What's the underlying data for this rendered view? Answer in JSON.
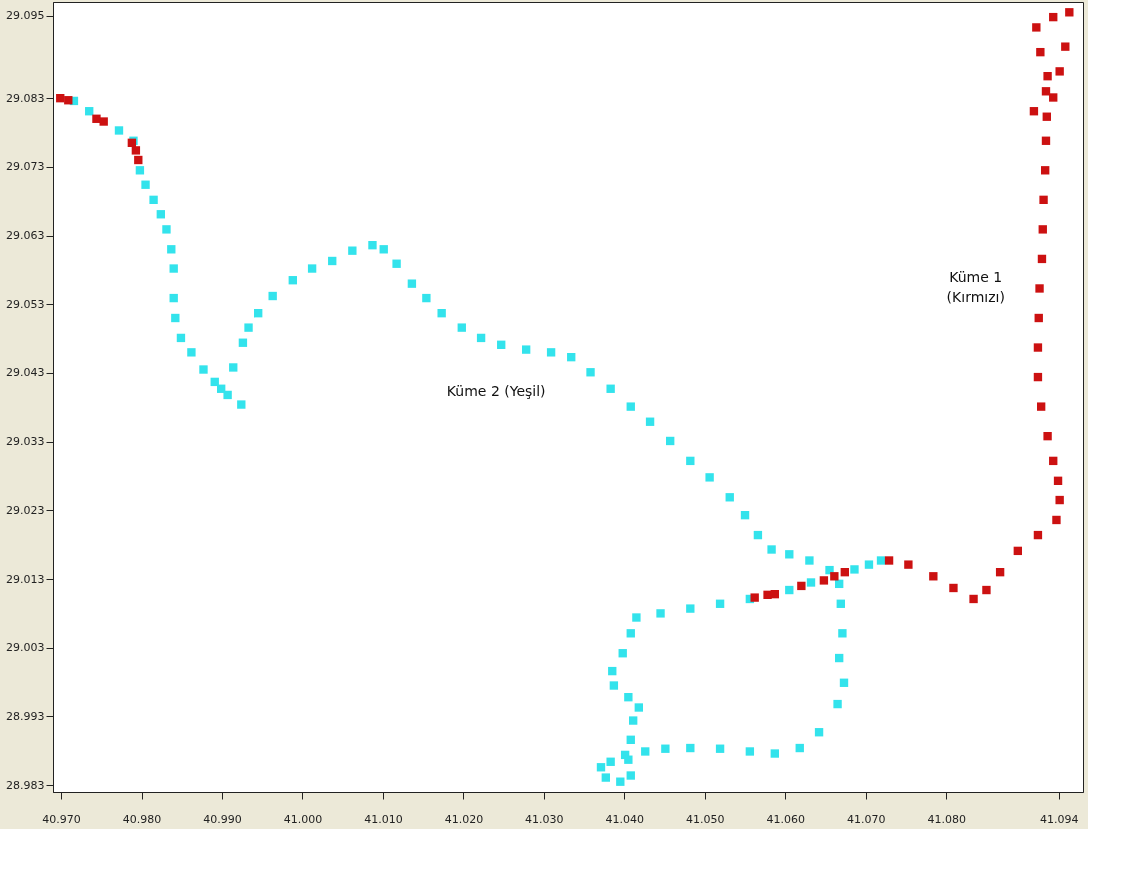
{
  "chart_data": {
    "type": "scatter",
    "marker": "square",
    "grid": false,
    "xlim": [
      40.969,
      41.097
    ],
    "ylim": [
      28.982,
      29.097
    ],
    "xticks": [
      {
        "value": 40.97,
        "label": "40.970"
      },
      {
        "value": 40.98,
        "label": "40.980"
      },
      {
        "value": 40.99,
        "label": "40.990"
      },
      {
        "value": 41.0,
        "label": "41.000"
      },
      {
        "value": 41.01,
        "label": "41.010"
      },
      {
        "value": 41.02,
        "label": "41.020"
      },
      {
        "value": 41.03,
        "label": "41.030"
      },
      {
        "value": 41.04,
        "label": "41.040"
      },
      {
        "value": 41.05,
        "label": "41.050"
      },
      {
        "value": 41.06,
        "label": "41.060"
      },
      {
        "value": 41.07,
        "label": "41.070"
      },
      {
        "value": 41.08,
        "label": "41.080"
      },
      41.094
    ],
    "yticks": [
      28.983,
      28.993,
      29.003,
      29.013,
      29.023,
      29.033,
      29.043,
      29.053,
      29.063,
      29.073,
      29.083,
      29.095
    ],
    "series": [
      {
        "name": "Küme 2 (Yeşil)",
        "color": "#33e3ec",
        "x": [
          40.9716,
          40.9735,
          40.9772,
          40.979,
          40.9798,
          40.9805,
          40.9815,
          40.9824,
          40.9831,
          40.9837,
          40.984,
          40.984,
          40.9842,
          40.9849,
          40.9862,
          40.9877,
          40.9891,
          40.9907,
          40.9924,
          40.9899,
          40.9914,
          40.9926,
          40.9933,
          40.9945,
          40.9963,
          40.9988,
          41.0012,
          41.0037,
          41.0062,
          41.0087,
          41.0101,
          41.0117,
          41.0136,
          41.0154,
          41.0173,
          41.0198,
          41.0222,
          41.0247,
          41.0278,
          41.0309,
          41.0334,
          41.0358,
          41.0383,
          41.0408,
          41.0432,
          41.0457,
          41.0482,
          41.0506,
          41.0531,
          41.055,
          41.0566,
          41.0583,
          41.0605,
          41.063,
          41.0655,
          41.0667,
          41.0669,
          41.0671,
          41.0667,
          41.0673,
          41.0665,
          41.0642,
          41.0618,
          41.0587,
          41.0556,
          41.0519,
          41.0482,
          41.0451,
          41.0426,
          41.0401,
          41.0383,
          41.0371,
          41.0377,
          41.0395,
          41.0408,
          41.0405,
          41.0408,
          41.0411,
          41.0418,
          41.0405,
          41.0387,
          41.0385,
          41.0398,
          41.0408,
          41.0415,
          41.0445,
          41.0482,
          41.0519,
          41.0556,
          41.0605,
          41.0632,
          41.0686,
          41.0704,
          41.0719
        ],
        "values": [
          29.0826,
          29.0811,
          29.0783,
          29.0768,
          29.0725,
          29.0704,
          29.0682,
          29.0661,
          29.0639,
          29.061,
          29.0582,
          29.0539,
          29.051,
          29.0481,
          29.046,
          29.0435,
          29.0417,
          29.0398,
          29.0384,
          29.0407,
          29.0438,
          29.0474,
          29.0496,
          29.0517,
          29.0542,
          29.0565,
          29.0582,
          29.0593,
          29.0608,
          29.0616,
          29.061,
          29.0589,
          29.056,
          29.0539,
          29.0517,
          29.0496,
          29.0481,
          29.0471,
          29.0464,
          29.046,
          29.0453,
          29.0431,
          29.0407,
          29.0381,
          29.0359,
          29.0331,
          29.0302,
          29.0278,
          29.0249,
          29.0223,
          29.0194,
          29.0173,
          29.0166,
          29.0157,
          29.0143,
          29.0123,
          29.0094,
          29.0051,
          29.0015,
          28.9979,
          28.9948,
          28.9907,
          28.9884,
          28.9876,
          28.9879,
          28.9883,
          28.9884,
          28.9883,
          28.9879,
          28.9874,
          28.9864,
          28.9856,
          28.9841,
          28.9835,
          28.9844,
          28.9867,
          28.9896,
          28.9924,
          28.9943,
          28.9958,
          28.9975,
          28.9996,
          29.0022,
          29.0051,
          29.0074,
          29.008,
          29.0087,
          29.0094,
          29.0101,
          29.0114,
          29.0125,
          29.0144,
          29.0151,
          29.0157
        ]
      },
      {
        "name": "Küme 1\n(Kırmızı)",
        "color": "#cc1111",
        "x": [
          40.9699,
          40.9709,
          40.9744,
          40.9753,
          40.9788,
          40.9793,
          40.9796,
          41.0562,
          41.0578,
          41.0587,
          41.062,
          41.0648,
          41.0661,
          41.0674,
          41.0729,
          41.0753,
          41.0784,
          41.0809,
          41.0834,
          41.085,
          41.0867,
          41.0889,
          41.0914,
          41.0937,
          41.0941,
          41.0939,
          41.0933,
          41.0926,
          41.0918,
          41.0914,
          41.0914,
          41.0915,
          41.0916,
          41.0919,
          41.092,
          41.0921,
          41.0923,
          41.0924,
          41.0925,
          41.0933,
          41.0941,
          41.0948,
          41.0953,
          41.0933,
          41.0912,
          41.0917,
          41.0926,
          41.0924,
          41.0909
        ],
        "values": [
          29.083,
          29.0827,
          29.08,
          29.0796,
          29.0765,
          29.0754,
          29.074,
          29.0103,
          29.0107,
          29.0108,
          29.012,
          29.0128,
          29.0134,
          29.014,
          29.0157,
          29.0151,
          29.0134,
          29.0117,
          29.0101,
          29.0114,
          29.014,
          29.0171,
          29.0194,
          29.0216,
          29.0245,
          29.0273,
          29.0302,
          29.0338,
          29.0381,
          29.0424,
          29.0467,
          29.051,
          29.0553,
          29.0596,
          29.0639,
          29.0682,
          29.0725,
          29.0768,
          29.0803,
          29.0831,
          29.0869,
          29.0905,
          29.0955,
          29.0948,
          29.0933,
          29.0897,
          29.0862,
          29.084,
          29.0811
        ]
      }
    ]
  }
}
